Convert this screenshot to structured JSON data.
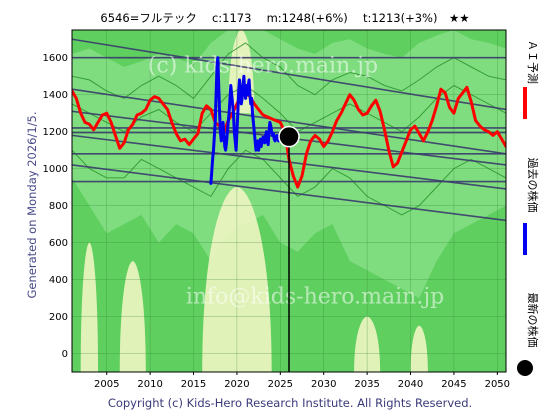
{
  "header": {
    "title": "6546=フルテック　 c:1173 　m:1248(+6%) 　t:1213(+3%)　★★"
  },
  "side_labels": {
    "generated": "Generated on Monday 2026/1/5.",
    "legend_ai": "ＡＩ予測",
    "legend_past": "過去の株価",
    "legend_latest": "最新の株価"
  },
  "footer": {
    "copyright": "Copyright (c) Kids-Hero Research Institute. All Rights Reserved."
  },
  "watermark": {
    "top": "(c) kids-hero.main.jp",
    "bottom": "info@kids-hero.main.jp"
  },
  "chart_data": {
    "type": "line",
    "title": "6546=フルテック　 c:1173 　m:1248(+6%) 　t:1213(+3%)　★★",
    "xlim": [
      2001,
      2051
    ],
    "ylim": [
      -100,
      1750
    ],
    "x_ticks": [
      2005,
      2010,
      2015,
      2020,
      2025,
      2030,
      2035,
      2040,
      2045,
      2050
    ],
    "y_ticks": [
      0,
      200,
      400,
      600,
      800,
      1000,
      1200,
      1400,
      1600
    ],
    "grid": true,
    "legend_position": "right",
    "colors": {
      "ai_forecast": "#ff0000",
      "past_price": "#0000ee",
      "latest_marker": "#000000",
      "band_fill": "#7fdd7f",
      "light_fill": "#eef5c2",
      "trend_lines": "#3b3b6e",
      "green_lines": "#1f8a1f"
    },
    "latest": {
      "x": 2026.0,
      "y": 1173
    },
    "series": [
      {
        "key": "ai_forecast",
        "name": "ＡＩ予測",
        "x": [
          2001,
          2001.5,
          2002,
          2002.5,
          2003,
          2003.5,
          2004,
          2004.5,
          2005,
          2005.5,
          2006,
          2006.5,
          2007,
          2007.5,
          2008,
          2008.5,
          2009,
          2009.5,
          2010,
          2010.5,
          2011,
          2011.5,
          2012,
          2012.5,
          2013,
          2013.5,
          2014,
          2014.5,
          2015,
          2015.5,
          2016,
          2016.5,
          2017,
          2017.5,
          2018,
          2018.5,
          2019,
          2019.5,
          2020,
          2020.5,
          2021,
          2021.5,
          2022,
          2022.5,
          2023,
          2023.5,
          2024,
          2024.5,
          2025,
          2025.5,
          2026,
          2026.5,
          2027,
          2027.5,
          2028,
          2028.5,
          2029,
          2029.5,
          2030,
          2030.5,
          2031,
          2031.5,
          2032,
          2032.5,
          2033,
          2033.5,
          2034,
          2034.5,
          2035,
          2035.5,
          2036,
          2036.5,
          2037,
          2037.5,
          2038,
          2038.5,
          2039,
          2039.5,
          2040,
          2040.5,
          2041,
          2041.5,
          2042,
          2042.5,
          2043,
          2043.5,
          2044,
          2044.5,
          2045,
          2045.5,
          2046,
          2046.5,
          2047,
          2047.5,
          2048,
          2048.5,
          2049,
          2049.5,
          2050,
          2050.5,
          2051
        ],
        "values": [
          1420,
          1380,
          1300,
          1250,
          1240,
          1210,
          1250,
          1290,
          1300,
          1250,
          1180,
          1110,
          1140,
          1210,
          1240,
          1290,
          1300,
          1320,
          1370,
          1390,
          1380,
          1350,
          1320,
          1250,
          1190,
          1150,
          1160,
          1130,
          1160,
          1190,
          1300,
          1340,
          1320,
          1250,
          1230,
          1200,
          1260,
          1300,
          1350,
          1400,
          1410,
          1390,
          1350,
          1320,
          1290,
          1280,
          1270,
          1260,
          1250,
          1200,
          1050,
          960,
          900,
          960,
          1080,
          1150,
          1180,
          1160,
          1120,
          1150,
          1200,
          1260,
          1300,
          1350,
          1400,
          1370,
          1320,
          1290,
          1300,
          1340,
          1370,
          1310,
          1210,
          1100,
          1010,
          1030,
          1090,
          1150,
          1210,
          1230,
          1190,
          1150,
          1200,
          1260,
          1340,
          1430,
          1410,
          1330,
          1300,
          1380,
          1410,
          1440,
          1360,
          1260,
          1230,
          1210,
          1200,
          1180,
          1200,
          1160,
          1120
        ]
      },
      {
        "key": "past_price",
        "name": "過去の株価",
        "x": [
          2017.0,
          2017.1,
          2017.2,
          2017.3,
          2017.4,
          2017.5,
          2017.6,
          2017.7,
          2017.8,
          2017.9,
          2018.0,
          2018.1,
          2018.2,
          2018.3,
          2018.4,
          2018.5,
          2018.6,
          2018.7,
          2018.8,
          2018.9,
          2019.0,
          2019.1,
          2019.2,
          2019.3,
          2019.4,
          2019.5,
          2019.6,
          2019.7,
          2019.8,
          2019.9,
          2020.0,
          2020.1,
          2020.2,
          2020.3,
          2020.4,
          2020.5,
          2020.6,
          2020.7,
          2020.8,
          2020.9,
          2021.0,
          2021.1,
          2021.2,
          2021.3,
          2021.4,
          2021.5,
          2021.6,
          2021.7,
          2021.8,
          2021.9,
          2022.0,
          2022.1,
          2022.2,
          2022.3,
          2022.4,
          2022.5,
          2022.6,
          2022.7,
          2022.8,
          2022.9,
          2023.0,
          2023.1,
          2023.2,
          2023.3,
          2023.4,
          2023.5,
          2023.6,
          2023.7,
          2023.8,
          2023.9,
          2024.0,
          2024.1,
          2024.2,
          2024.3,
          2024.4,
          2024.5,
          2024.6,
          2024.7,
          2024.8,
          2024.9,
          2025.0,
          2025.1,
          2025.2,
          2025.3,
          2025.4,
          2025.5,
          2025.6,
          2025.7,
          2025.8,
          2025.9,
          2026.0
        ],
        "values": [
          920,
          980,
          1050,
          1100,
          1180,
          1250,
          1400,
          1550,
          1600,
          1450,
          1300,
          1200,
          1150,
          1200,
          1250,
          1180,
          1120,
          1100,
          1140,
          1200,
          1250,
          1300,
          1380,
          1450,
          1400,
          1350,
          1300,
          1200,
          1150,
          1100,
          1200,
          1300,
          1420,
          1480,
          1420,
          1350,
          1380,
          1450,
          1500,
          1420,
          1380,
          1450,
          1400,
          1450,
          1480,
          1400,
          1350,
          1380,
          1300,
          1250,
          1200,
          1150,
          1100,
          1120,
          1150,
          1100,
          1130,
          1160,
          1120,
          1150,
          1170,
          1150,
          1140,
          1180,
          1200,
          1150,
          1130,
          1200,
          1250,
          1230,
          1200,
          1180,
          1190,
          1160,
          1150,
          1170,
          1180,
          1160,
          1150,
          1170,
          1190,
          1180,
          1170,
          1160,
          1175,
          1170,
          1180,
          1175,
          1170,
          1172,
          1173
        ]
      }
    ],
    "trend_lines": [
      {
        "x": [
          2001,
          2051
        ],
        "y": [
          1430,
          1080
        ]
      },
      {
        "x": [
          2001,
          2051
        ],
        "y": [
          1310,
          1020
        ]
      },
      {
        "x": [
          2001,
          2051
        ],
        "y": [
          1180,
          890
        ]
      },
      {
        "x": [
          2001,
          2051
        ],
        "y": [
          1020,
          720
        ]
      },
      {
        "x": [
          2001,
          2051
        ],
        "y": [
          1700,
          1320
        ]
      },
      {
        "x": [
          2001,
          2051
        ],
        "y": [
          1600,
          1600
        ]
      },
      {
        "x": [
          2001,
          2051
        ],
        "y": [
          1220,
          1220
        ]
      },
      {
        "x": [
          2001,
          2051
        ],
        "y": [
          1195,
          1195
        ]
      },
      {
        "x": [
          2001,
          2051
        ],
        "y": [
          1080,
          1080
        ]
      },
      {
        "x": [
          2001,
          2051
        ],
        "y": [
          930,
          930
        ]
      }
    ],
    "band_upper": {
      "x": [
        2001,
        2003,
        2005,
        2007,
        2009,
        2011,
        2013,
        2015,
        2017,
        2019,
        2021,
        2023,
        2025,
        2027,
        2029,
        2031,
        2033,
        2035,
        2037,
        2039,
        2041,
        2043,
        2045,
        2047,
        2049,
        2051
      ],
      "values": [
        1620,
        1650,
        1600,
        1550,
        1580,
        1620,
        1600,
        1560,
        1680,
        1750,
        1750,
        1750,
        1700,
        1650,
        1620,
        1680,
        1700,
        1650,
        1620,
        1600,
        1680,
        1720,
        1750,
        1700,
        1680,
        1650
      ]
    },
    "band_lower": {
      "x": [
        2001,
        2003,
        2005,
        2007,
        2009,
        2011,
        2013,
        2015,
        2017,
        2019,
        2021,
        2023,
        2025,
        2027,
        2029,
        2031,
        2033,
        2035,
        2037,
        2039,
        2041,
        2043,
        2045,
        2047,
        2049,
        2051
      ],
      "values": [
        950,
        800,
        650,
        700,
        750,
        600,
        700,
        650,
        500,
        650,
        700,
        750,
        600,
        550,
        650,
        700,
        500,
        450,
        400,
        350,
        300,
        500,
        650,
        700,
        750,
        800
      ]
    },
    "light_zones": [
      {
        "x0": 2002.0,
        "x1": 2004.0,
        "y0": -100,
        "y1": 600
      },
      {
        "x0": 2006.5,
        "x1": 2009.5,
        "y0": -100,
        "y1": 500
      },
      {
        "x0": 2016.0,
        "x1": 2024.0,
        "y0": -100,
        "y1": 900
      },
      {
        "x0": 2019.0,
        "x1": 2022.0,
        "y0": 1300,
        "y1": 1750
      },
      {
        "x0": 2033.5,
        "x1": 2036.5,
        "y0": -100,
        "y1": 200
      },
      {
        "x0": 2040.0,
        "x1": 2042.0,
        "y0": -100,
        "y1": 150
      }
    ],
    "green_lines": [
      {
        "x": [
          2001,
          2003,
          2005,
          2007,
          2009,
          2011,
          2013,
          2015,
          2017,
          2019,
          2021,
          2023,
          2025,
          2027,
          2029,
          2031,
          2033,
          2035,
          2037,
          2039,
          2041,
          2043,
          2045,
          2047,
          2049,
          2051
        ],
        "values": [
          1500,
          1480,
          1420,
          1380,
          1450,
          1500,
          1450,
          1380,
          1500,
          1620,
          1680,
          1600,
          1550,
          1450,
          1400,
          1480,
          1520,
          1500,
          1450,
          1420,
          1480,
          1550,
          1600,
          1550,
          1500,
          1480
        ]
      },
      {
        "x": [
          2001,
          2003,
          2005,
          2007,
          2009,
          2011,
          2013,
          2015,
          2017,
          2019,
          2021,
          2023,
          2025,
          2027,
          2029,
          2031,
          2033,
          2035,
          2037,
          2039,
          2041,
          2043,
          2045,
          2047,
          2049,
          2051
        ],
        "values": [
          1100,
          1000,
          950,
          950,
          1050,
          1000,
          950,
          900,
          850,
          1000,
          1100,
          1050,
          950,
          850,
          900,
          1000,
          950,
          850,
          800,
          750,
          800,
          900,
          1000,
          1050,
          1000,
          950
        ]
      },
      {
        "x": [
          2001,
          2003,
          2005,
          2007,
          2009,
          2011,
          2013,
          2015,
          2017,
          2019,
          2021,
          2023,
          2025,
          2027,
          2029,
          2031,
          2033,
          2035,
          2037,
          2039,
          2041,
          2043,
          2045,
          2047,
          2049,
          2051
        ],
        "values": [
          1350,
          1300,
          1250,
          1200,
          1280,
          1320,
          1250,
          1200,
          1300,
          1400,
          1450,
          1380,
          1300,
          1200,
          1250,
          1300,
          1350,
          1300,
          1250,
          1200,
          1280,
          1380,
          1450,
          1400,
          1350,
          1300
        ]
      }
    ]
  }
}
